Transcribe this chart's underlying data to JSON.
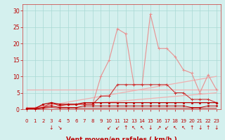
{
  "x": [
    0,
    1,
    2,
    3,
    4,
    5,
    6,
    7,
    8,
    9,
    10,
    11,
    12,
    13,
    14,
    15,
    16,
    17,
    18,
    19,
    20,
    21,
    22,
    23
  ],
  "line_scatter_pink": [
    0.5,
    0.5,
    1,
    1.5,
    1.5,
    1.5,
    1.5,
    1.5,
    1.5,
    10,
    15,
    24.5,
    23,
    7.5,
    7.5,
    29,
    18.5,
    18.5,
    16,
    12,
    11,
    5,
    10.5,
    6
  ],
  "line_medium_red": [
    0.3,
    0.3,
    0.5,
    2,
    1,
    1.5,
    1.5,
    1.5,
    1.5,
    4,
    4,
    7.5,
    7.5,
    7.5,
    7.5,
    7.5,
    7.5,
    7.5,
    5,
    5,
    3,
    3,
    3,
    2
  ],
  "line_dark1": [
    0.2,
    0.2,
    1.5,
    2,
    1.5,
    1.5,
    1.5,
    2,
    2,
    2,
    2,
    2,
    2,
    2,
    2,
    2,
    2,
    2,
    2,
    2,
    2,
    2,
    2,
    2
  ],
  "line_dark2": [
    0.1,
    0.1,
    0.5,
    1,
    0.5,
    0.5,
    0.5,
    1,
    1,
    1,
    1,
    1,
    1,
    1,
    1,
    1,
    1,
    1,
    1,
    1,
    0.5,
    0.5,
    1,
    1
  ],
  "line_dark3": [
    0.0,
    0.0,
    0.3,
    0.5,
    0.3,
    0.3,
    0.3,
    0.3,
    0.3,
    0.3,
    0.3,
    0.3,
    0.3,
    0.3,
    0.3,
    0.3,
    0.3,
    0.3,
    0.3,
    0.3,
    0.3,
    0.3,
    0.3,
    0.3
  ],
  "line_horiz_upper": [
    6,
    6,
    6,
    6,
    6,
    6,
    6,
    6,
    6,
    6,
    6,
    6,
    6,
    6,
    6,
    6,
    6,
    6,
    6,
    6,
    6,
    6,
    6,
    6
  ],
  "line_horiz_lower": [
    0,
    0,
    0,
    0,
    0,
    0,
    0,
    0,
    0,
    0,
    0,
    0,
    0,
    0,
    0,
    0,
    0,
    0,
    0,
    0,
    0,
    0,
    0,
    0
  ],
  "line_diag_upper": [
    0,
    0.435,
    0.87,
    1.3,
    1.74,
    2.17,
    2.61,
    3.04,
    3.48,
    3.91,
    4.35,
    4.78,
    5.22,
    5.65,
    6.09,
    6.52,
    6.96,
    7.39,
    7.83,
    8.26,
    8.7,
    9.13,
    9.57,
    10.0
  ],
  "line_diag_lower": [
    0,
    0.217,
    0.435,
    0.652,
    0.87,
    1.087,
    1.304,
    1.522,
    1.739,
    1.957,
    2.174,
    2.391,
    2.609,
    2.826,
    3.043,
    3.261,
    3.478,
    3.696,
    3.913,
    4.13,
    4.348,
    4.565,
    4.783,
    5.0
  ],
  "background_color": "#d4f0ee",
  "grid_color": "#a8d8d4",
  "color_dark_red": "#bb0000",
  "color_medium_red": "#cc3333",
  "color_light_pink": "#e89090",
  "color_vlight_pink": "#f0b0b0",
  "ylim": [
    0,
    32
  ],
  "xlim": [
    -0.5,
    23.5
  ],
  "yticks": [
    0,
    5,
    10,
    15,
    20,
    25,
    30
  ],
  "xticks": [
    0,
    1,
    2,
    3,
    4,
    5,
    6,
    7,
    8,
    9,
    10,
    11,
    12,
    13,
    14,
    15,
    16,
    17,
    18,
    19,
    20,
    21,
    22,
    23
  ],
  "wind_dirs": {
    "3": "↓",
    "4": "↘",
    "10": "↙",
    "11": "↙",
    "12": "↑",
    "13": "↖",
    "14": "↖",
    "15": "↓",
    "16": "↗",
    "17": "↙",
    "18": "↖",
    "19": "↖",
    "20": "↑",
    "21": "↓",
    "22": "↑",
    "23": "↓"
  }
}
